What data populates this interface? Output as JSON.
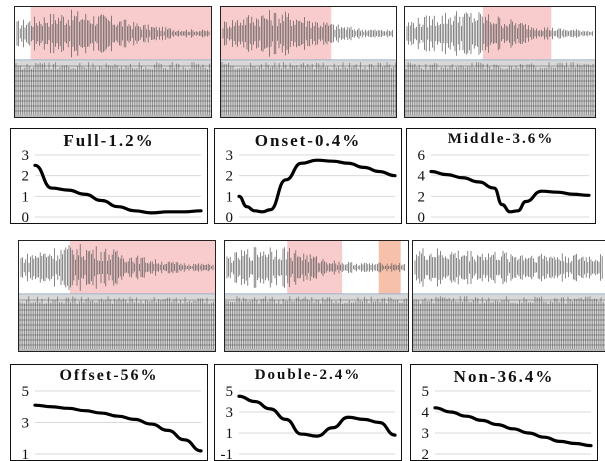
{
  "colors": {
    "highlight": "#f7c3c3",
    "highlight_alt": "#f6b59b",
    "axis_line": "#9fb3c8",
    "curve": "#000000",
    "grid": "#d9d9d9"
  },
  "spectrograms": [
    {
      "id": "full",
      "highlight_label": "full-segment"
    },
    {
      "id": "onset",
      "highlight_label": "onset-segment"
    },
    {
      "id": "middle",
      "highlight_label": "middle-segment"
    },
    {
      "id": "offset",
      "highlight_label": "offset-segment"
    },
    {
      "id": "double",
      "highlight_label": "double-segment"
    },
    {
      "id": "non",
      "highlight_label": "non-segment"
    }
  ],
  "chart_data": [
    {
      "type": "line",
      "title": "Full-1.2%",
      "yticks": [
        "3",
        "2",
        "1",
        "0"
      ],
      "ylim": [
        0,
        3
      ],
      "series": [
        {
          "x": [
            0,
            0.1,
            0.2,
            0.3,
            0.4,
            0.5,
            0.6,
            0.7,
            0.8,
            0.9,
            1.0
          ],
          "values": [
            2.5,
            1.4,
            1.3,
            1.1,
            0.8,
            0.5,
            0.3,
            0.2,
            0.25,
            0.25,
            0.3
          ]
        }
      ]
    },
    {
      "type": "line",
      "title": "Onset-0.4%",
      "yticks": [
        "3",
        "2",
        "1",
        "0"
      ],
      "ylim": [
        0,
        3
      ],
      "series": [
        {
          "x": [
            0,
            0.05,
            0.1,
            0.15,
            0.2,
            0.3,
            0.4,
            0.5,
            0.6,
            0.7,
            0.8,
            0.9,
            1.0
          ],
          "values": [
            1.0,
            0.5,
            0.3,
            0.25,
            0.35,
            1.8,
            2.6,
            2.75,
            2.7,
            2.6,
            2.4,
            2.2,
            2.0
          ]
        }
      ]
    },
    {
      "type": "line",
      "title": "Middle-3.6%",
      "yticks": [
        "6",
        "4",
        "2",
        "0"
      ],
      "ylim": [
        0,
        6
      ],
      "series": [
        {
          "x": [
            0,
            0.1,
            0.2,
            0.3,
            0.4,
            0.45,
            0.5,
            0.55,
            0.6,
            0.7,
            0.8,
            0.9,
            1.0
          ],
          "values": [
            4.4,
            4.1,
            3.8,
            3.4,
            2.8,
            1.2,
            0.5,
            0.6,
            1.5,
            2.5,
            2.4,
            2.2,
            2.1
          ]
        }
      ]
    },
    {
      "type": "line",
      "title": "Offset-56%",
      "yticks": [
        "5",
        "3",
        "1"
      ],
      "ylim": [
        1,
        5
      ],
      "series": [
        {
          "x": [
            0,
            0.1,
            0.2,
            0.3,
            0.4,
            0.5,
            0.6,
            0.7,
            0.8,
            0.9,
            1.0
          ],
          "values": [
            4.1,
            4.0,
            3.9,
            3.75,
            3.6,
            3.4,
            3.2,
            2.9,
            2.5,
            1.9,
            1.2
          ]
        }
      ]
    },
    {
      "type": "line",
      "title": "Double-2.4%",
      "yticks": [
        "5",
        "3",
        "1",
        "-1"
      ],
      "ylim": [
        -1,
        5
      ],
      "series": [
        {
          "x": [
            0,
            0.1,
            0.2,
            0.3,
            0.4,
            0.5,
            0.6,
            0.7,
            0.8,
            0.9,
            1.0
          ],
          "values": [
            4.5,
            4.0,
            3.3,
            2.3,
            0.9,
            0.7,
            1.5,
            2.5,
            2.3,
            2.0,
            0.8
          ]
        }
      ]
    },
    {
      "type": "line",
      "title": "Non-36.4%",
      "yticks": [
        "5",
        "4",
        "3",
        "2"
      ],
      "ylim": [
        2,
        5
      ],
      "series": [
        {
          "x": [
            0,
            0.1,
            0.2,
            0.3,
            0.4,
            0.5,
            0.6,
            0.7,
            0.8,
            0.9,
            1.0
          ],
          "values": [
            4.2,
            4.0,
            3.8,
            3.6,
            3.4,
            3.2,
            3.0,
            2.8,
            2.6,
            2.5,
            2.4
          ]
        }
      ]
    }
  ]
}
